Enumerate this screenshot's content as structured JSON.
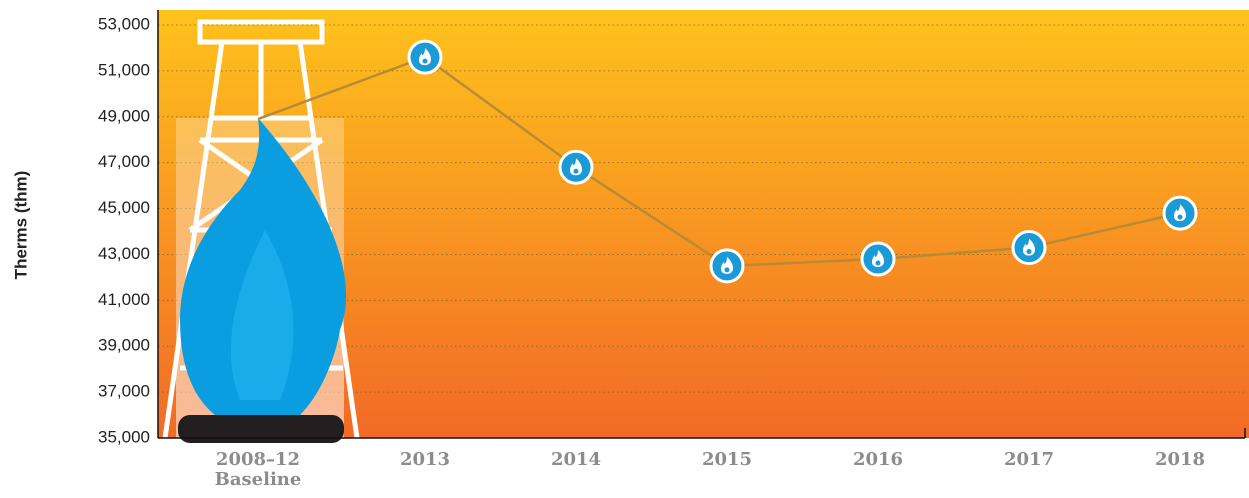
{
  "chart_data": {
    "type": "line",
    "y_label": "Therms (thm)",
    "categories": [
      "2008–12 Baseline",
      "2013",
      "2014",
      "2015",
      "2016",
      "2017",
      "2018"
    ],
    "series": [
      {
        "values": [
          48900,
          51600,
          46800,
          42500,
          42800,
          43300,
          44800
        ],
        "color": "#b98a35",
        "marker_color": "#1a9ad6"
      }
    ],
    "ylim": [
      35000,
      53000
    ],
    "yticks": [
      {
        "value": 35000,
        "label": "35,000"
      },
      {
        "value": 37000,
        "label": "37,000"
      },
      {
        "value": 39000,
        "label": "39,000"
      },
      {
        "value": 41000,
        "label": "41,000"
      },
      {
        "value": 43000,
        "label": "43,000"
      },
      {
        "value": 45000,
        "label": "45,000"
      },
      {
        "value": 47000,
        "label": "47,000"
      },
      {
        "value": 49000,
        "label": "49,000"
      },
      {
        "value": 51000,
        "label": "51,000"
      },
      {
        "value": 53000,
        "label": "53,000"
      }
    ],
    "grid": true
  }
}
